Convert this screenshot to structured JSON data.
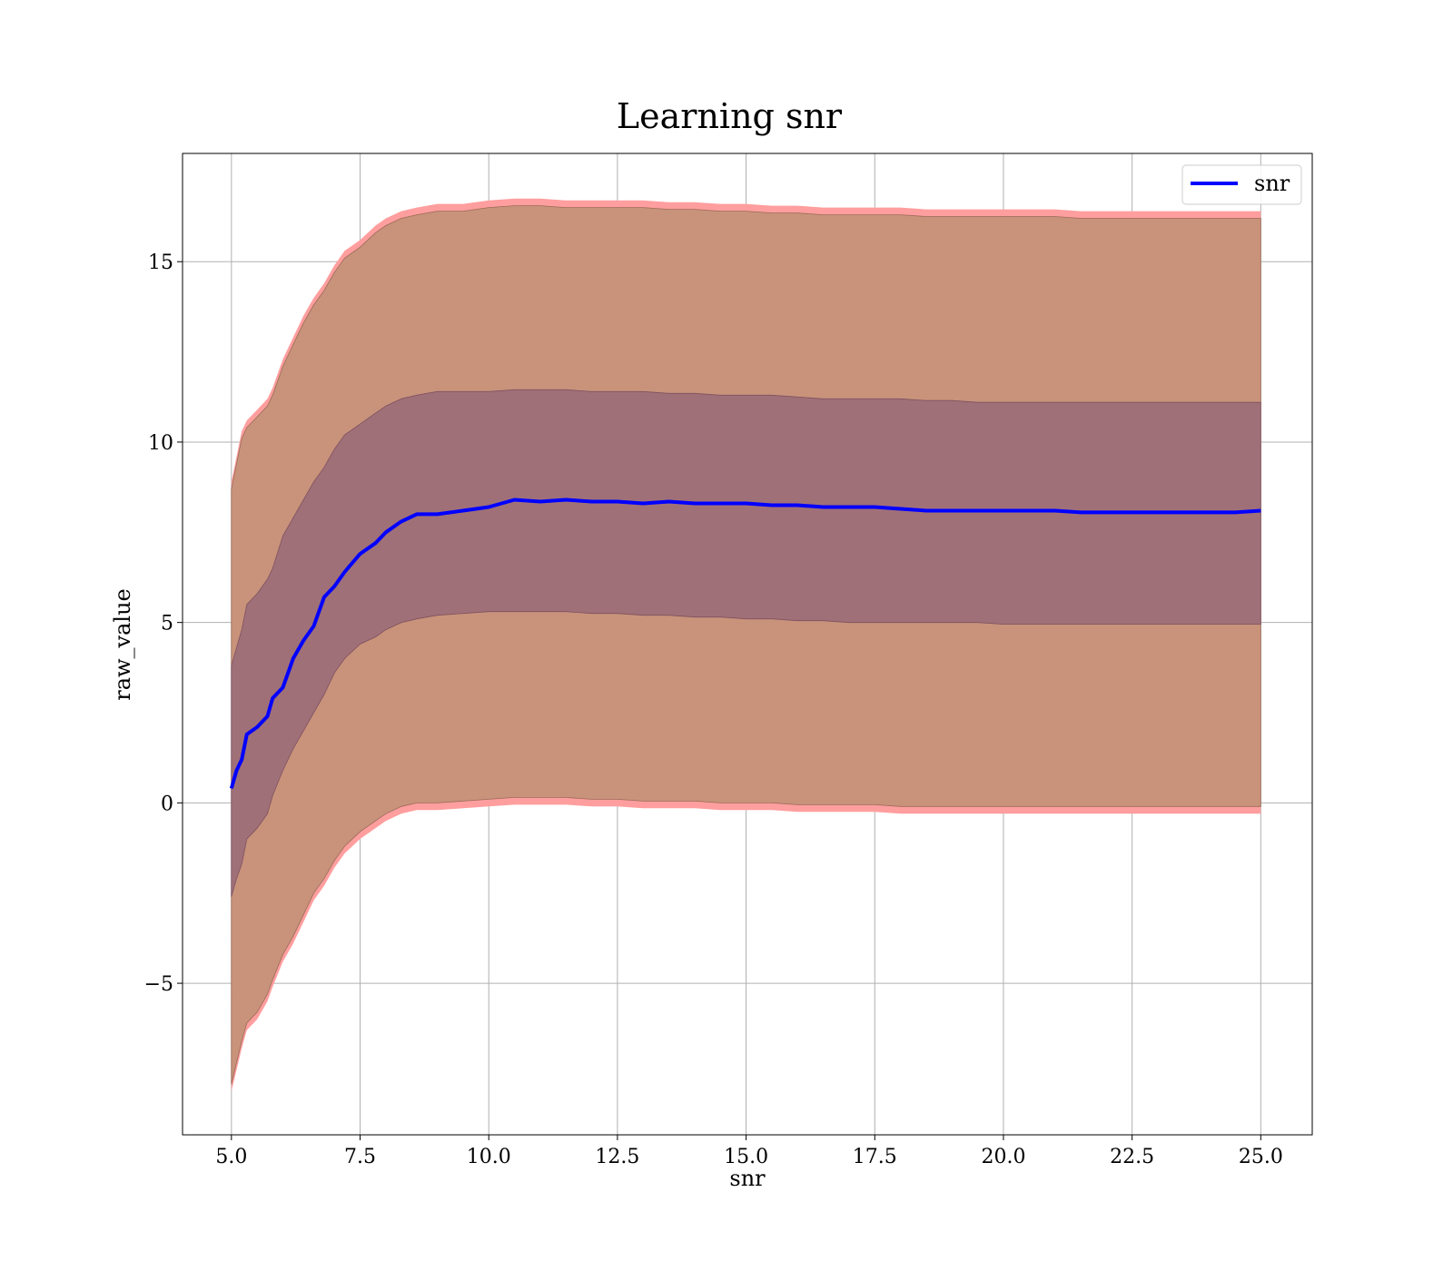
{
  "chart_data": {
    "type": "line",
    "title": "Learning snr",
    "xlabel": "snr",
    "ylabel": "raw_value",
    "xlim": [
      4.05,
      26.0
    ],
    "ylim": [
      -9.2,
      18.0
    ],
    "xticks": [
      5.0,
      7.5,
      10.0,
      12.5,
      15.0,
      17.5,
      20.0,
      22.5,
      25.0
    ],
    "xtick_labels": [
      "5.0",
      "7.5",
      "10.0",
      "12.5",
      "15.0",
      "17.5",
      "20.0",
      "22.5",
      "25.0"
    ],
    "yticks": [
      -5,
      0,
      5,
      10,
      15
    ],
    "ytick_labels": [
      "−5",
      "0",
      "5",
      "10",
      "15"
    ],
    "grid": true,
    "legend_position": "top-right",
    "colors": {
      "line": "#0000ff",
      "band_outer": "#ff9e9e",
      "band_two_sigma": "#c8937a",
      "band_one_sigma": "#a07078"
    },
    "series": [
      {
        "name": "snr",
        "x": [
          5.0,
          5.1,
          5.2,
          5.3,
          5.5,
          5.7,
          5.8,
          6.0,
          6.2,
          6.4,
          6.6,
          6.8,
          7.0,
          7.2,
          7.5,
          7.8,
          8.0,
          8.3,
          8.6,
          9.0,
          9.5,
          10.0,
          10.5,
          11.0,
          11.5,
          12.0,
          12.5,
          13.0,
          13.5,
          14.0,
          14.5,
          15.0,
          15.5,
          16.0,
          16.5,
          17.0,
          17.5,
          18.0,
          18.5,
          19.0,
          19.5,
          20.0,
          20.5,
          21.0,
          21.5,
          22.0,
          22.5,
          23.0,
          23.5,
          24.0,
          24.5,
          25.0
        ],
        "mean": [
          0.4,
          0.9,
          1.2,
          1.9,
          2.1,
          2.4,
          2.9,
          3.2,
          4.0,
          4.5,
          4.9,
          5.7,
          6.0,
          6.4,
          6.9,
          7.2,
          7.5,
          7.8,
          8.0,
          8.0,
          8.1,
          8.2,
          8.4,
          8.35,
          8.4,
          8.35,
          8.35,
          8.3,
          8.35,
          8.3,
          8.3,
          8.3,
          8.25,
          8.25,
          8.2,
          8.2,
          8.2,
          8.15,
          8.1,
          8.1,
          8.1,
          8.1,
          8.1,
          8.1,
          8.05,
          8.05,
          8.05,
          8.05,
          8.05,
          8.05,
          8.05,
          8.1
        ],
        "band_upper_outer": [
          8.9,
          9.6,
          10.3,
          10.6,
          10.9,
          11.2,
          11.5,
          12.3,
          12.9,
          13.5,
          14.0,
          14.4,
          14.9,
          15.3,
          15.6,
          16.0,
          16.2,
          16.4,
          16.5,
          16.6,
          16.6,
          16.7,
          16.75,
          16.75,
          16.7,
          16.7,
          16.7,
          16.7,
          16.65,
          16.65,
          16.6,
          16.6,
          16.55,
          16.55,
          16.5,
          16.5,
          16.5,
          16.5,
          16.45,
          16.45,
          16.45,
          16.45,
          16.45,
          16.45,
          16.4,
          16.4,
          16.4,
          16.4,
          16.4,
          16.4,
          16.4,
          16.4
        ],
        "band_upper_two_sigma": [
          8.7,
          9.4,
          10.1,
          10.4,
          10.7,
          11.0,
          11.3,
          12.1,
          12.7,
          13.3,
          13.8,
          14.2,
          14.7,
          15.1,
          15.4,
          15.8,
          16.0,
          16.2,
          16.3,
          16.4,
          16.4,
          16.5,
          16.55,
          16.55,
          16.5,
          16.5,
          16.5,
          16.5,
          16.45,
          16.45,
          16.4,
          16.4,
          16.35,
          16.35,
          16.3,
          16.3,
          16.3,
          16.3,
          16.25,
          16.25,
          16.25,
          16.25,
          16.25,
          16.25,
          16.2,
          16.2,
          16.2,
          16.2,
          16.2,
          16.2,
          16.2,
          16.2
        ],
        "band_upper_one_sigma": [
          3.8,
          4.3,
          4.8,
          5.5,
          5.8,
          6.2,
          6.5,
          7.4,
          7.9,
          8.4,
          8.9,
          9.3,
          9.8,
          10.2,
          10.5,
          10.8,
          11.0,
          11.2,
          11.3,
          11.4,
          11.4,
          11.4,
          11.45,
          11.45,
          11.45,
          11.4,
          11.4,
          11.4,
          11.35,
          11.35,
          11.3,
          11.3,
          11.3,
          11.25,
          11.2,
          11.2,
          11.2,
          11.2,
          11.15,
          11.15,
          11.1,
          11.1,
          11.1,
          11.1,
          11.1,
          11.1,
          11.1,
          11.1,
          11.1,
          11.1,
          11.1,
          11.1
        ],
        "band_lower_one_sigma": [
          -2.6,
          -2.1,
          -1.7,
          -1.0,
          -0.7,
          -0.3,
          0.2,
          0.9,
          1.5,
          2.0,
          2.5,
          3.0,
          3.6,
          4.0,
          4.4,
          4.6,
          4.8,
          5.0,
          5.1,
          5.2,
          5.25,
          5.3,
          5.3,
          5.3,
          5.3,
          5.25,
          5.25,
          5.2,
          5.2,
          5.15,
          5.15,
          5.1,
          5.1,
          5.05,
          5.05,
          5.0,
          5.0,
          5.0,
          5.0,
          5.0,
          5.0,
          4.95,
          4.95,
          4.95,
          4.95,
          4.95,
          4.95,
          4.95,
          4.95,
          4.95,
          4.95,
          4.95
        ],
        "band_lower_two_sigma": [
          -7.8,
          -7.2,
          -6.6,
          -6.1,
          -5.8,
          -5.3,
          -4.9,
          -4.2,
          -3.7,
          -3.1,
          -2.5,
          -2.1,
          -1.6,
          -1.2,
          -0.8,
          -0.5,
          -0.3,
          -0.1,
          0.0,
          0.0,
          0.05,
          0.1,
          0.15,
          0.15,
          0.15,
          0.1,
          0.1,
          0.05,
          0.05,
          0.05,
          0.0,
          0.0,
          0.0,
          -0.05,
          -0.05,
          -0.05,
          -0.05,
          -0.1,
          -0.1,
          -0.1,
          -0.1,
          -0.1,
          -0.1,
          -0.1,
          -0.1,
          -0.1,
          -0.1,
          -0.1,
          -0.1,
          -0.1,
          -0.1,
          -0.1
        ],
        "band_lower_outer": [
          -8.0,
          -7.4,
          -6.8,
          -6.3,
          -6.0,
          -5.5,
          -5.1,
          -4.4,
          -3.9,
          -3.3,
          -2.7,
          -2.3,
          -1.8,
          -1.4,
          -1.0,
          -0.7,
          -0.5,
          -0.3,
          -0.2,
          -0.2,
          -0.15,
          -0.1,
          -0.05,
          -0.05,
          -0.05,
          -0.1,
          -0.1,
          -0.15,
          -0.15,
          -0.15,
          -0.2,
          -0.2,
          -0.2,
          -0.25,
          -0.25,
          -0.25,
          -0.25,
          -0.3,
          -0.3,
          -0.3,
          -0.3,
          -0.3,
          -0.3,
          -0.3,
          -0.3,
          -0.3,
          -0.3,
          -0.3,
          -0.3,
          -0.3,
          -0.3,
          -0.3
        ]
      }
    ]
  }
}
